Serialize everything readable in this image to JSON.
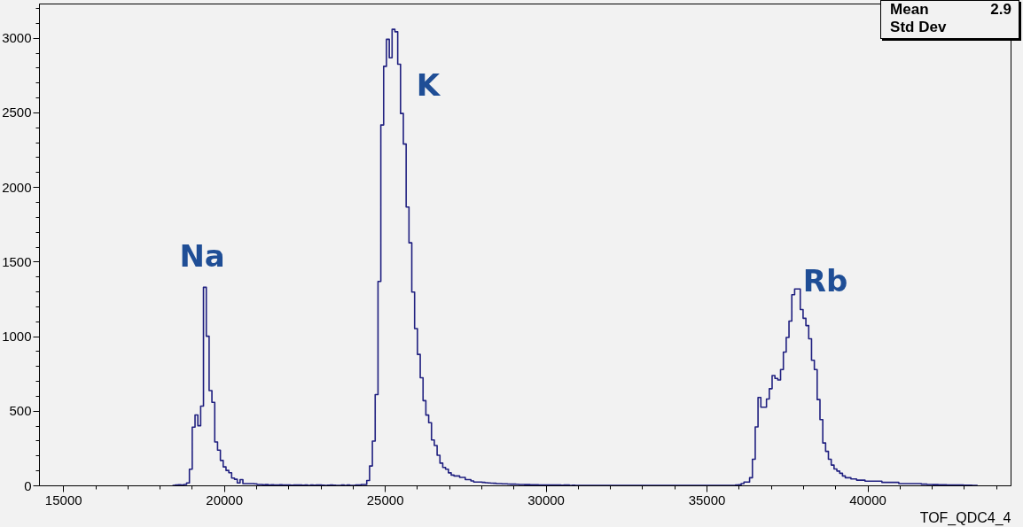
{
  "chart_data": {
    "type": "histogram",
    "xlabel": "TOF_QDC4_4",
    "color": "#202080",
    "xlim": [
      14250,
      44450
    ],
    "ylim": [
      0,
      3230
    ],
    "xticks": [
      15000,
      {
        "value": 16000,
        "label": null
      },
      {
        "value": 17000,
        "label": null
      },
      {
        "value": 18000,
        "label": null
      },
      {
        "value": 19000,
        "label": null
      },
      20000,
      {
        "value": 21000,
        "label": null
      },
      {
        "value": 22000,
        "label": null
      },
      {
        "value": 23000,
        "label": null
      },
      {
        "value": 24000,
        "label": null
      },
      25000,
      {
        "value": 26000,
        "label": null
      },
      {
        "value": 27000,
        "label": null
      },
      {
        "value": 28000,
        "label": null
      },
      {
        "value": 29000,
        "label": null
      },
      30000,
      {
        "value": 31000,
        "label": null
      },
      {
        "value": 32000,
        "label": null
      },
      {
        "value": 33000,
        "label": null
      },
      {
        "value": 34000,
        "label": null
      },
      35000,
      {
        "value": 36000,
        "label": null
      },
      {
        "value": 37000,
        "label": null
      },
      {
        "value": 38000,
        "label": null
      },
      {
        "value": 39000,
        "label": null
      },
      40000,
      {
        "value": 41000,
        "label": null
      },
      {
        "value": 42000,
        "label": null
      },
      {
        "value": 43000,
        "label": null
      },
      {
        "value": 44000,
        "label": null
      }
    ],
    "yticks": [
      0,
      {
        "value": 100,
        "label": null
      },
      {
        "value": 200,
        "label": null
      },
      {
        "value": 300,
        "label": null
      },
      {
        "value": 400,
        "label": null
      },
      500,
      {
        "value": 600,
        "label": null
      },
      {
        "value": 700,
        "label": null
      },
      {
        "value": 800,
        "label": null
      },
      {
        "value": 900,
        "label": null
      },
      1000,
      {
        "value": 1100,
        "label": null
      },
      {
        "value": 1200,
        "label": null
      },
      {
        "value": 1300,
        "label": null
      },
      {
        "value": 1400,
        "label": null
      },
      1500,
      {
        "value": 1600,
        "label": null
      },
      {
        "value": 1700,
        "label": null
      },
      {
        "value": 1800,
        "label": null
      },
      {
        "value": 1900,
        "label": null
      },
      2000,
      {
        "value": 2100,
        "label": null
      },
      {
        "value": 2200,
        "label": null
      },
      {
        "value": 2300,
        "label": null
      },
      {
        "value": 2400,
        "label": null
      },
      2500,
      {
        "value": 2600,
        "label": null
      },
      {
        "value": 2700,
        "label": null
      },
      {
        "value": 2800,
        "label": null
      },
      {
        "value": 2900,
        "label": null
      },
      3000,
      {
        "value": 3100,
        "label": null
      },
      {
        "value": 3200,
        "label": null
      }
    ],
    "bins": [
      18400,
      18487.5,
      18575,
      18662.5,
      18750,
      18837.5,
      18925,
      19012.5,
      19100,
      19187.5,
      19275,
      19362.5,
      19450,
      19537.5,
      19625,
      19712.5,
      19800,
      19887.5,
      19975,
      20062.5,
      20150,
      20237.5,
      20325,
      20412.5,
      20500,
      20587.5,
      20675,
      20762.5,
      20850,
      20937.5,
      21025,
      21112.5,
      21200,
      21287.5,
      21375,
      21462.5,
      21550,
      21637.5,
      21725,
      21812.5,
      21900,
      21987.5,
      22075,
      22162.5,
      22250,
      22337.5,
      22425,
      22512.5,
      22600,
      22687.5,
      22775,
      22862.5,
      22950,
      23037.5,
      23125,
      23212.5,
      23300,
      23387.5,
      23475,
      23562.5,
      23650,
      23737.5,
      23825,
      23912.5,
      24000,
      24087.5,
      24175,
      24262.5,
      24350,
      24437.5,
      24525,
      24612.5,
      24700,
      24787.5,
      24875,
      24962.5,
      25050,
      25137.5,
      25225,
      25312.5,
      25400,
      25487.5,
      25575,
      25662.5,
      25750,
      25837.5,
      25925,
      26012.5,
      26100,
      26187.5,
      26275,
      26362.5,
      26450,
      26537.5,
      26625,
      26712.5,
      26800,
      26887.5,
      26975,
      27062.5,
      27150,
      27237.5,
      27325,
      27412.5,
      27500,
      27587.5,
      27675,
      27762.5,
      27850,
      27937.5,
      28025,
      28112.5,
      28200,
      28287.5,
      28375,
      28462.5,
      28550,
      28637.5,
      28725,
      28812.5,
      28900,
      28987.5,
      29075,
      29162.5,
      29250,
      29337.5,
      29425,
      29512.5,
      29600,
      29687.5,
      29775,
      29862.5,
      29950,
      30037.5,
      30125,
      30212.5,
      30300,
      30387.5,
      30475,
      30562.5,
      30650,
      30737.5,
      30825,
      30912.5,
      31000,
      31087.5,
      31175,
      31262.5,
      31350,
      31437.5,
      31525,
      31612.5,
      31700,
      31787.5,
      31875,
      31962.5,
      32050,
      32137.5,
      32225,
      32312.5,
      32400,
      32487.5,
      32575,
      32662.5,
      32750,
      32837.5,
      32925,
      33012.5,
      33100,
      33187.5,
      33275,
      33362.5,
      33450,
      33537.5,
      33625,
      33712.5,
      33800,
      33887.5,
      33975,
      34062.5,
      34150,
      34237.5,
      34325,
      34412.5,
      34500,
      34587.5,
      34675,
      34762.5,
      34850,
      34937.5,
      35025,
      35112.5,
      35200,
      35287.5,
      35375,
      35462.5,
      35550,
      35637.5,
      35725,
      35812.5,
      35900,
      35987.5,
      36075,
      36162.5,
      36250,
      36337.5,
      36425,
      36512.5,
      36600,
      36687.5,
      36775,
      36862.5,
      36950,
      37037.5,
      37125,
      37212.5,
      37300,
      37387.5,
      37475,
      37562.5,
      37650,
      37737.5,
      37825,
      37912.5,
      38000,
      38087.5,
      38175,
      38262.5,
      38350,
      38437.5,
      38525,
      38612.5,
      38700,
      38787.5,
      38875,
      38962.5,
      39050,
      39137.5,
      39225,
      39312.5,
      39400,
      39487.5,
      39575,
      39662.5,
      39750,
      39837.5,
      39925,
      40012.5,
      40100,
      40187.5,
      40275,
      40362.5,
      40450,
      40537.5,
      40625,
      40712.5,
      40800,
      40887.5,
      40975,
      41062.5,
      41150,
      41237.5,
      41325,
      41412.5,
      41500,
      41587.5,
      41675,
      41762.5,
      41850,
      41937.5,
      42025,
      42112.5,
      42200,
      42287.5,
      42375,
      42462.5,
      42550,
      42637.5,
      42725,
      42812.5,
      42900,
      42987.5,
      43075,
      43162.5,
      43250,
      43337.5,
      43425
    ],
    "values": [
      0,
      2,
      4,
      2,
      6,
      16,
      108,
      390,
      472,
      400,
      531,
      1328,
      1000,
      635,
      557,
      291,
      236,
      167,
      124,
      100,
      85,
      49,
      41,
      16,
      39,
      12,
      12,
      12,
      12,
      10,
      6,
      6,
      4,
      5,
      3,
      4,
      2,
      3,
      4,
      2,
      3,
      2,
      1,
      2,
      3,
      2,
      1,
      2,
      0,
      2,
      1,
      3,
      2,
      1,
      0,
      1,
      2,
      1,
      0,
      0,
      2,
      0,
      3,
      0,
      0,
      2,
      3,
      6,
      6,
      33,
      130,
      297,
      609,
      1367,
      2416,
      2809,
      2990,
      2866,
      3057,
      3041,
      2823,
      2493,
      2288,
      1866,
      1626,
      1296,
      1051,
      878,
      721,
      568,
      471,
      420,
      304,
      267,
      202,
      149,
      120,
      108,
      84,
      69,
      63,
      63,
      53,
      53,
      39,
      39,
      30,
      22,
      22,
      22,
      20,
      18,
      16,
      15,
      14,
      12,
      12,
      10,
      10,
      9,
      8,
      8,
      7,
      6,
      6,
      5,
      5,
      4,
      4,
      4,
      3,
      3,
      3,
      2,
      2,
      3,
      2,
      2,
      1,
      2,
      2,
      0,
      1,
      0,
      0,
      0,
      0,
      0,
      0,
      0,
      0,
      0,
      0,
      0,
      0,
      0,
      0,
      0,
      0,
      0,
      0,
      0,
      0,
      0,
      0,
      0,
      0,
      0,
      0,
      0,
      0,
      0,
      0,
      0,
      0,
      0,
      0,
      0,
      0,
      0,
      0,
      0,
      0,
      0,
      0,
      0,
      0,
      0,
      0,
      0,
      0,
      0,
      0,
      0,
      0,
      0,
      0,
      0,
      0,
      0,
      2,
      4,
      12,
      22,
      22,
      51,
      175,
      392,
      589,
      524,
      524,
      579,
      648,
      736,
      717,
      707,
      776,
      894,
      992,
      1101,
      1278,
      1317,
      1317,
      1179,
      1120,
      1071,
      983,
      839,
      776,
      575,
      441,
      284,
      228,
      175,
      136,
      110,
      96,
      81,
      63,
      51,
      51,
      43,
      43,
      35,
      35,
      35,
      28,
      28,
      28,
      28,
      28,
      28,
      20,
      20,
      20,
      20,
      20,
      20,
      12,
      12,
      12,
      12,
      12,
      12,
      12,
      12,
      8,
      8,
      6,
      6,
      5,
      5,
      4,
      4,
      4,
      3,
      3,
      3,
      2,
      2,
      2,
      1,
      1,
      1,
      0,
      0
    ],
    "annotations": [
      {
        "text": "Na",
        "x": 19406,
        "y": 1328
      },
      {
        "text": "K",
        "x": 25268,
        "y": 3057
      },
      {
        "text": "Rb",
        "x": 37781,
        "y": 1317
      },
      "Mean",
      "2.9",
      "Std Dev"
    ]
  }
}
